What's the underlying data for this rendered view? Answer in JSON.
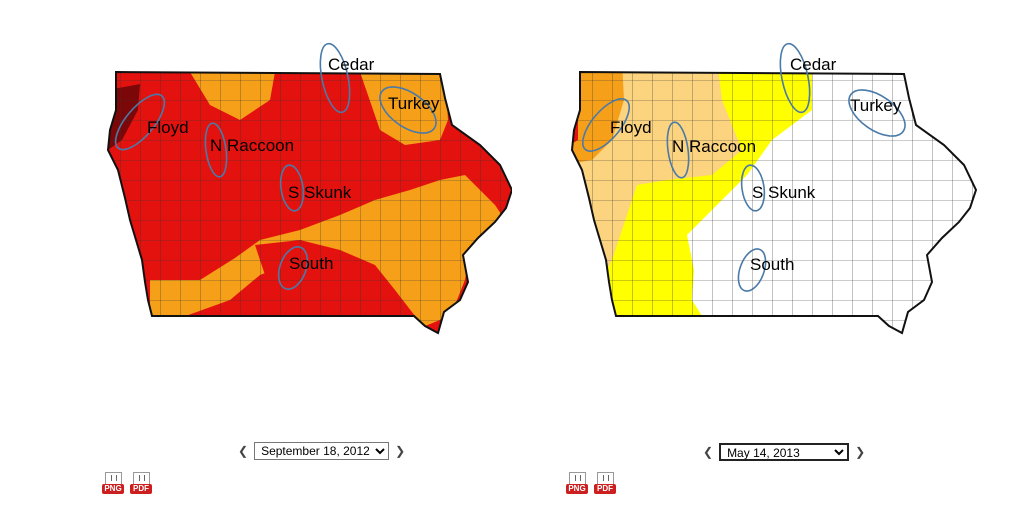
{
  "maps": [
    {
      "date": "September 18, 2012",
      "date_options": [
        "September 18, 2012"
      ],
      "labels": {
        "cedar": "Cedar",
        "turkey": "Turkey",
        "floyd": "Floyd",
        "n_raccoon": "N Raccoon",
        "s_skunk": "S Skunk",
        "south": "South"
      },
      "colors": {
        "d1": "#f6a01a",
        "d2": "#e4120f",
        "d3": "#7b0708"
      }
    },
    {
      "date": "May 14, 2013",
      "date_options": [
        "May 14, 2013"
      ],
      "labels": {
        "cedar": "Cedar",
        "turkey": "Turkey",
        "floyd": "Floyd",
        "n_raccoon": "N Raccoon",
        "s_skunk": "S Skunk",
        "south": "South"
      },
      "colors": {
        "d0": "#ffff00",
        "d1": "#fcd37f",
        "d2": "#f6a01a",
        "d3": "#e4120f"
      }
    }
  ],
  "downloads": {
    "png": "PNG",
    "pdf": "PDF"
  }
}
